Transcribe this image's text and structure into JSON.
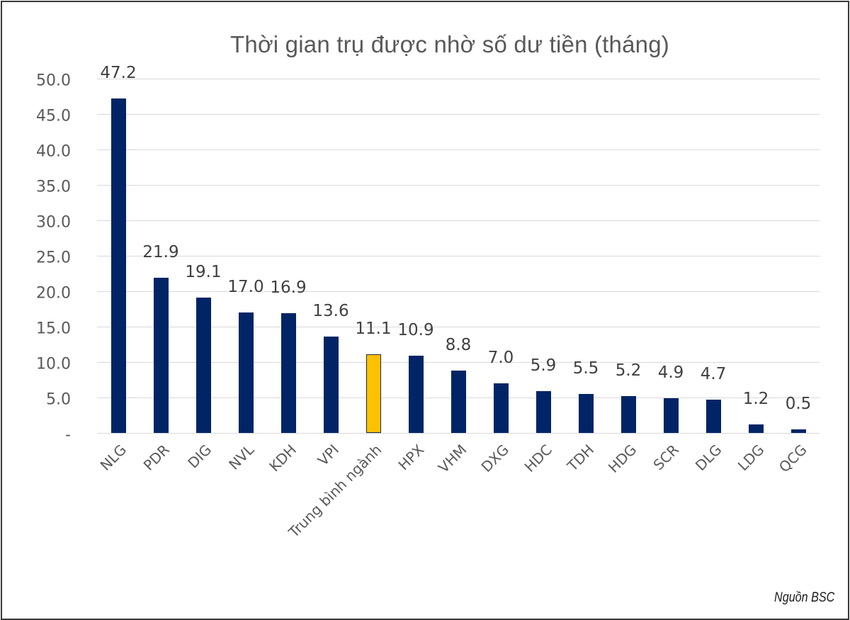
{
  "title": "Thời gian trụ được nhờ số dư tiền (tháng)",
  "source": "Nguồn BSC",
  "colors": {
    "bar": "#002466",
    "highlight": "#FFC000",
    "highlight_border": "#1f2a44",
    "grid": "#d9d9d9",
    "text": "#595959"
  },
  "y_ticks": [
    "50.0",
    "45.0",
    "40.0",
    "35.0",
    "30.0",
    "25.0",
    "20.0",
    "15.0",
    "10.0",
    "5.0",
    "-"
  ],
  "bars": [
    {
      "label": "NLG",
      "value": 47.2,
      "value_label": "47.2",
      "highlight": false
    },
    {
      "label": "PDR",
      "value": 21.9,
      "value_label": "21.9",
      "highlight": false
    },
    {
      "label": "DIG",
      "value": 19.1,
      "value_label": "19.1",
      "highlight": false
    },
    {
      "label": "NVL",
      "value": 17.0,
      "value_label": "17.0",
      "highlight": false
    },
    {
      "label": "KDH",
      "value": 16.9,
      "value_label": "16.9",
      "highlight": false
    },
    {
      "label": "VPI",
      "value": 13.6,
      "value_label": "13.6",
      "highlight": false
    },
    {
      "label": "Trung bình ngành",
      "value": 11.1,
      "value_label": "11.1",
      "highlight": true
    },
    {
      "label": "HPX",
      "value": 10.9,
      "value_label": "10.9",
      "highlight": false
    },
    {
      "label": "VHM",
      "value": 8.8,
      "value_label": "8.8",
      "highlight": false
    },
    {
      "label": "DXG",
      "value": 7.0,
      "value_label": "7.0",
      "highlight": false
    },
    {
      "label": "HDC",
      "value": 5.9,
      "value_label": "5.9",
      "highlight": false
    },
    {
      "label": "TDH",
      "value": 5.5,
      "value_label": "5.5",
      "highlight": false
    },
    {
      "label": "HDG",
      "value": 5.2,
      "value_label": "5.2",
      "highlight": false
    },
    {
      "label": "SCR",
      "value": 4.9,
      "value_label": "4.9",
      "highlight": false
    },
    {
      "label": "DLG",
      "value": 4.7,
      "value_label": "4.7",
      "highlight": false
    },
    {
      "label": "LDG",
      "value": 1.2,
      "value_label": "1.2",
      "highlight": false
    },
    {
      "label": "QCG",
      "value": 0.5,
      "value_label": "0.5",
      "highlight": false
    }
  ],
  "chart_data": {
    "type": "bar",
    "title": "Thời gian trụ được nhờ số dư tiền (tháng)",
    "xlabel": "",
    "ylabel": "",
    "categories": [
      "NLG",
      "PDR",
      "DIG",
      "NVL",
      "KDH",
      "VPI",
      "Trung bình ngành",
      "HPX",
      "VHM",
      "DXG",
      "HDC",
      "TDH",
      "HDG",
      "SCR",
      "DLG",
      "LDG",
      "QCG"
    ],
    "values": [
      47.2,
      21.9,
      19.1,
      17.0,
      16.9,
      13.6,
      11.1,
      10.9,
      8.8,
      7.0,
      5.9,
      5.5,
      5.2,
      4.9,
      4.7,
      1.2,
      0.5
    ],
    "highlighted_category": "Trung bình ngành",
    "ylim": [
      0,
      50
    ],
    "yticks": [
      0,
      5,
      10,
      15,
      20,
      25,
      30,
      35,
      40,
      45,
      50
    ],
    "ytick_labels": [
      "-",
      "5.0",
      "10.0",
      "15.0",
      "20.0",
      "25.0",
      "30.0",
      "35.0",
      "40.0",
      "45.0",
      "50.0"
    ],
    "grid": true,
    "data_labels": true,
    "legend": null,
    "annotations": [
      "Nguồn BSC"
    ]
  }
}
